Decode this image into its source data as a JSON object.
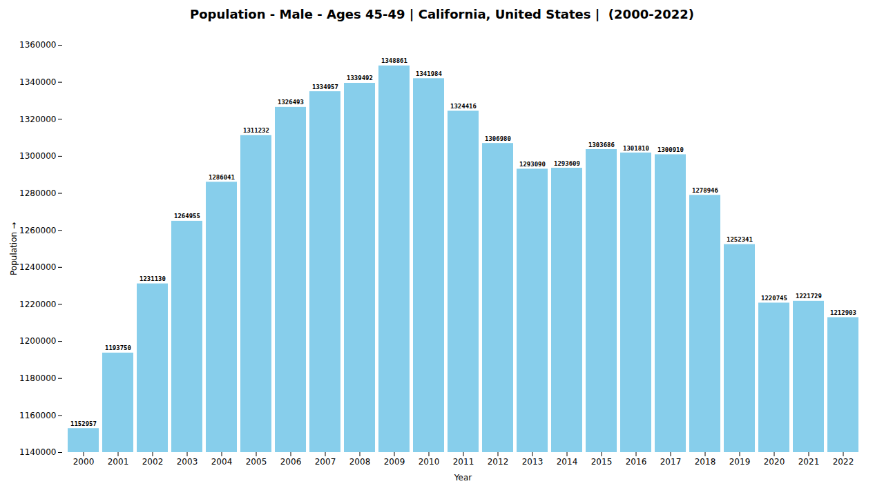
{
  "chart_data": {
    "type": "bar",
    "title": "Population - Male - Ages 45-49 | California, United States |  (2000-2022)",
    "xlabel": "Year",
    "ylabel": "Population",
    "categories": [
      "2000",
      "2001",
      "2002",
      "2003",
      "2004",
      "2005",
      "2006",
      "2007",
      "2008",
      "2009",
      "2010",
      "2011",
      "2012",
      "2013",
      "2014",
      "2015",
      "2016",
      "2017",
      "2018",
      "2019",
      "2020",
      "2021",
      "2022"
    ],
    "values": [
      1152957,
      1193750,
      1231130,
      1264955,
      1286041,
      1311232,
      1326493,
      1334957,
      1339492,
      1348861,
      1341984,
      1324416,
      1306980,
      1293090,
      1293609,
      1303686,
      1301810,
      1300910,
      1278946,
      1252341,
      1220745,
      1221729,
      1212903
    ],
    "color": "#87CEEB",
    "ylim": [
      1140000,
      1360000
    ],
    "yticks": [
      1140000,
      1160000,
      1180000,
      1200000,
      1220000,
      1240000,
      1260000,
      1280000,
      1300000,
      1320000,
      1340000,
      1360000
    ],
    "grid": false,
    "data_labels": true
  }
}
